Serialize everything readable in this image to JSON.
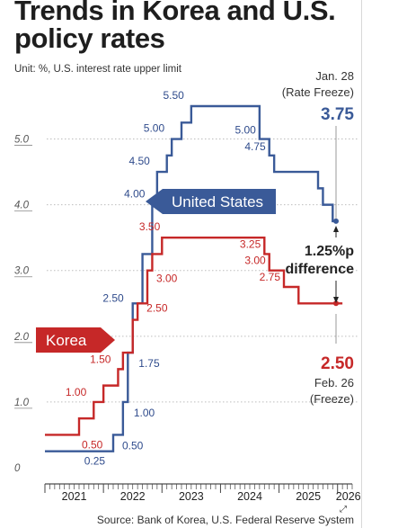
{
  "title": "Trends in Korea and U.S. policy rates",
  "unit_note": "Unit: %, U.S. interest rate upper limit",
  "source": "Source: Bank of Korea, U.S. Federal Reserve System",
  "chart_data": {
    "type": "line",
    "step": true,
    "title": "Trends in Korea and U.S. policy rates",
    "ylim": [
      0,
      5.75
    ],
    "yticks": [
      "0",
      "1.0",
      "2.0",
      "3.0",
      "4.0",
      "5.0"
    ],
    "years": [
      "2021",
      "2022",
      "2023",
      "2024",
      "2025",
      "2026"
    ],
    "xlim": [
      "2021-01",
      "2026-04"
    ],
    "grid": true,
    "series": [
      {
        "name": "United States",
        "color": "#3a5a98",
        "points": [
          [
            "2021-01",
            0.25
          ],
          [
            "2022-03",
            0.5
          ],
          [
            "2022-05",
            1.0
          ],
          [
            "2022-06",
            1.75
          ],
          [
            "2022-07",
            2.5
          ],
          [
            "2022-09",
            3.25
          ],
          [
            "2022-11",
            4.0
          ],
          [
            "2022-12",
            4.5
          ],
          [
            "2023-02",
            4.75
          ],
          [
            "2023-03",
            5.0
          ],
          [
            "2023-05",
            5.25
          ],
          [
            "2023-07",
            5.5
          ],
          [
            "2024-09",
            5.0
          ],
          [
            "2024-11",
            4.75
          ],
          [
            "2024-12",
            4.5
          ],
          [
            "2025-09",
            4.25
          ],
          [
            "2025-10",
            4.0
          ],
          [
            "2025-12",
            3.75
          ],
          [
            "2026-01",
            3.75
          ]
        ],
        "labels": [
          {
            "date": "2021-09",
            "value": 0.25,
            "text": "0.25"
          },
          {
            "date": "2022-03",
            "value": 0.5,
            "text": "0.50"
          },
          {
            "date": "2022-05",
            "value": 1.0,
            "text": "1.00"
          },
          {
            "date": "2022-06",
            "value": 1.75,
            "text": "1.75"
          },
          {
            "date": "2022-07",
            "value": 2.5,
            "text": "2.50"
          },
          {
            "date": "2022-11",
            "value": 4.0,
            "text": "4.00"
          },
          {
            "date": "2022-12",
            "value": 4.5,
            "text": "4.50"
          },
          {
            "date": "2023-03",
            "value": 5.0,
            "text": "5.00"
          },
          {
            "date": "2023-07",
            "value": 5.5,
            "text": "5.50"
          },
          {
            "date": "2024-09",
            "value": 5.0,
            "text": "5.00"
          },
          {
            "date": "2024-11",
            "value": 4.75,
            "text": "4.75"
          }
        ]
      },
      {
        "name": "Korea",
        "color": "#c62828",
        "points": [
          [
            "2021-01",
            0.5
          ],
          [
            "2021-08",
            0.75
          ],
          [
            "2021-11",
            1.0
          ],
          [
            "2022-01",
            1.25
          ],
          [
            "2022-04",
            1.5
          ],
          [
            "2022-05",
            1.75
          ],
          [
            "2022-07",
            2.25
          ],
          [
            "2022-08",
            2.5
          ],
          [
            "2022-10",
            3.0
          ],
          [
            "2022-11",
            3.25
          ],
          [
            "2023-01",
            3.5
          ],
          [
            "2024-10",
            3.25
          ],
          [
            "2024-11",
            3.0
          ],
          [
            "2025-02",
            2.75
          ],
          [
            "2025-05",
            2.5
          ],
          [
            "2026-02",
            2.5
          ]
        ],
        "labels": [
          {
            "date": "2021-08",
            "value": 0.5,
            "text": "0.50"
          },
          {
            "date": "2021-11",
            "value": 1.0,
            "text": "1.00"
          },
          {
            "date": "2022-04",
            "value": 1.5,
            "text": "1.50"
          },
          {
            "date": "2022-08",
            "value": 2.5,
            "text": "2.50"
          },
          {
            "date": "2022-10",
            "value": 3.0,
            "text": "3.00"
          },
          {
            "date": "2023-01",
            "value": 3.5,
            "text": "3.50"
          },
          {
            "date": "2024-10",
            "value": 3.25,
            "text": "3.25"
          },
          {
            "date": "2024-11",
            "value": 3.0,
            "text": "3.00"
          },
          {
            "date": "2025-02",
            "value": 2.75,
            "text": "2.75"
          }
        ]
      }
    ],
    "annotations": {
      "us_date": "Jan. 28",
      "us_status": "(Rate Freeze)",
      "us_rate": "3.75",
      "kr_rate": "2.50",
      "kr_date": "Feb. 26",
      "kr_status": "(Freeze)",
      "diff_value": "1.25%p",
      "diff_label": "difference"
    }
  }
}
